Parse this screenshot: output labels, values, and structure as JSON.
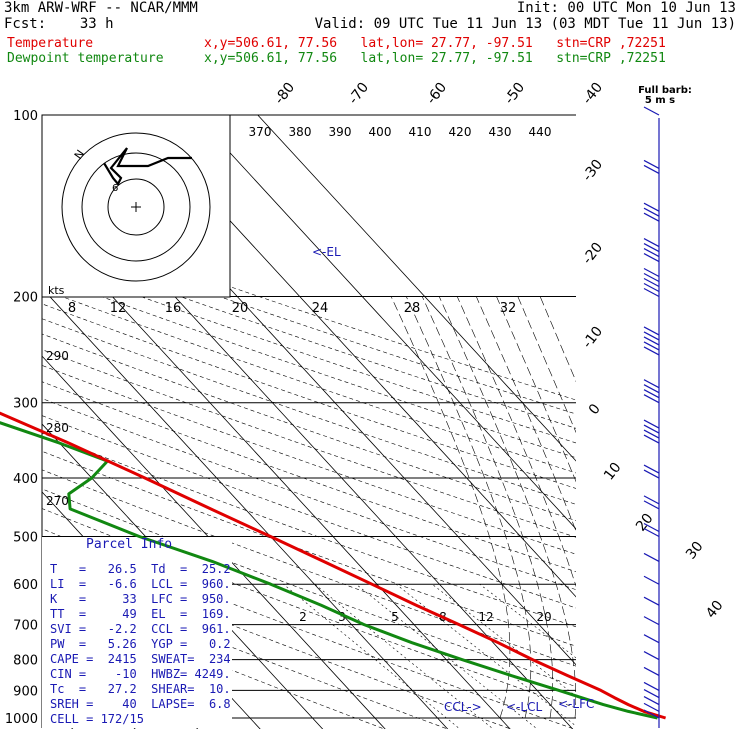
{
  "header": {
    "title": "3km ARW-WRF -- NCAR/MMM",
    "init": "Init: 00 UTC Mon 10 Jun 13",
    "fcst": "Fcst:    33 h",
    "valid": "Valid: 09 UTC Tue 11 Jun 13 (03 MDT Tue 11 Jun 13)",
    "temp_label": "Temperature",
    "dew_label": "Dewpoint temperature",
    "temp_info": "x,y=506.61, 77.56   lat,lon= 27.77, -97.51   stn=CRP ,72251",
    "dew_info": "x,y=506.61, 77.56   lat,lon= 27.77, -97.51   stn=CRP ,72251"
  },
  "colors": {
    "temperature": "#e00000",
    "dewpoint": "#118811",
    "parcel_text": "#1a1ab4",
    "barbs": "#1a1ab4"
  },
  "chart_data": {
    "type": "line",
    "title": "3km ARW-WRF -- NCAR/MMM",
    "pressure_levels_hPa": [
      "100",
      "200",
      "300",
      "400",
      "500",
      "600",
      "700",
      "800",
      "900",
      "1000"
    ],
    "isotherm_labels_C": [
      "-80",
      "-70",
      "-60",
      "-50",
      "-40",
      "-30",
      "-20",
      "-10",
      "0",
      "10",
      "20",
      "30",
      "40"
    ],
    "theta_e_labels_K": [
      "370",
      "380",
      "390",
      "400",
      "410",
      "420",
      "430",
      "440"
    ],
    "theta_labels_K": [
      "290",
      "280",
      "270"
    ],
    "mixing_ratio_labels": [
      "2",
      "3",
      "5",
      "8",
      "12",
      "20"
    ],
    "hodograph": {
      "units_label": "kts",
      "ring_labels": [
        "8",
        "12",
        "16",
        "20",
        "24",
        "28",
        "32"
      ],
      "hodo_marks": [
        "N",
        "6"
      ]
    },
    "temperature": {
      "name": "Temperature",
      "p_hPa": [
        1000,
        975,
        950,
        925,
        900,
        850,
        800,
        750,
        700,
        650,
        600,
        550,
        500,
        450,
        400,
        350,
        300,
        250,
        200,
        175,
        150,
        125,
        100
      ],
      "t_C": [
        26.5,
        24.0,
        22.5,
        21.3,
        20.2,
        17.0,
        13.8,
        10.8,
        7.2,
        3.2,
        -0.8,
        -5.2,
        -10.0,
        -15.5,
        -21.5,
        -28.5,
        -37.5,
        -47.0,
        -56.0,
        -61.0,
        -67.0,
        -72.0,
        -77.0
      ]
    },
    "dewpoint": {
      "name": "Dewpoint temperature",
      "p_hPa": [
        1000,
        975,
        950,
        925,
        900,
        850,
        800,
        750,
        700,
        650,
        600,
        550,
        500,
        450,
        425,
        400,
        375,
        350,
        300,
        250,
        200,
        175,
        150,
        125,
        100
      ],
      "td_C": [
        25.2,
        21.5,
        18.5,
        16.0,
        13.5,
        8.0,
        2.5,
        -3.0,
        -8.0,
        -12.0,
        -17.0,
        -23.0,
        -31.0,
        -38.0,
        -36.0,
        -30.0,
        -25.0,
        -30.0,
        -43.0,
        -55.0,
        -67.0,
        -79.0,
        -83.0,
        -86.0,
        -83.0
      ]
    },
    "annotations": [
      "<-EL",
      "CCL->",
      "<-LCL",
      "<-LFC"
    ],
    "wind_barbs": {
      "label": "Full barb:",
      "sublabel": "5 m s",
      "p_hPa": [
        1000,
        975,
        950,
        925,
        900,
        850,
        800,
        750,
        700,
        650,
        600,
        550,
        500,
        450,
        400,
        350,
        300,
        250,
        200,
        175,
        150,
        125,
        100
      ],
      "spd_ms": [
        5,
        5,
        5,
        5,
        5,
        5,
        5,
        5,
        5,
        5,
        5,
        5,
        10,
        10,
        10,
        20,
        20,
        25,
        25,
        20,
        15,
        10,
        5
      ]
    }
  },
  "parcel": {
    "title": "Parcel Info",
    "rows": [
      "T   =   26.5  Td  =  25.2",
      "LI  =   -6.6  LCL =  960.",
      "K   =     33  LFC =  950.",
      "TT  =     49  EL  =  169.",
      "SVI =   -2.2  CCL =  961.",
      "PW  =   5.26  YGP =   0.2",
      "CAPE =  2415  SWEAT=  234",
      "CIN =    -10  HWBZ= 4249.",
      "Tc  =   27.2  SHEAR=  10.",
      "SREH =    40  LAPSE=  6.8",
      "CELL = 172/15"
    ]
  }
}
